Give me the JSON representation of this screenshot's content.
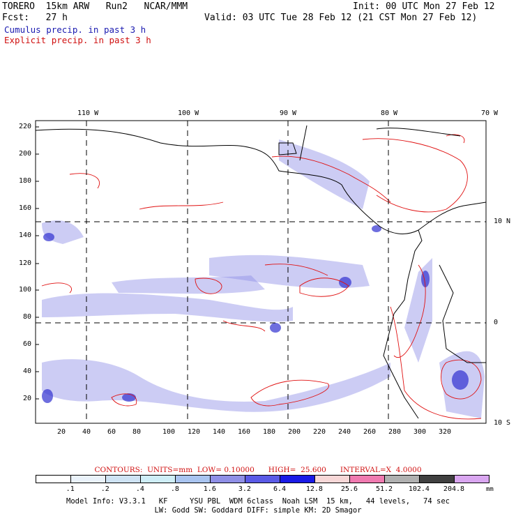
{
  "header": {
    "model": "TORERO  15km ARW   Run2   NCAR/MMM",
    "init": "Init: 00 UTC Mon 27 Feb 12",
    "fcst": "Fcst:   27 h",
    "valid": "Valid: 03 UTC Tue 28 Feb 12 (21 CST Mon 27 Feb 12)",
    "cumulus": "Cumulus precip. in past 3 h",
    "explicit": "Explicit precip. in past 3 h"
  },
  "map": {
    "top_ticks": [
      "110 W",
      "100 W",
      "90 W",
      "80 W",
      "70 W"
    ],
    "right_ticks": [
      "10 N",
      "0",
      "10 S"
    ],
    "left_ticks": [
      "220",
      "200",
      "180",
      "160",
      "140",
      "120",
      "100",
      "80",
      "60",
      "40",
      "20"
    ],
    "bottom_ticks": [
      "20",
      "40",
      "60",
      "80",
      "100",
      "120",
      "140",
      "160",
      "180",
      "200",
      "220",
      "240",
      "260",
      "280",
      "300",
      "320"
    ],
    "colors": {
      "cumulus": "#3a3ae0",
      "explicit": "#e01010",
      "coast": "#000000"
    }
  },
  "legend": {
    "contours": "CONTOURS:  UNITS=mm  LOW= 0.10000      HIGH=  25.600      INTERVAL=X  4.0000",
    "bins": [
      ".1",
      ".2",
      ".4",
      ".8",
      "1.6",
      "3.2",
      "6.4",
      "12.8",
      "25.6",
      "51.2",
      "102.4",
      "204.8"
    ],
    "units": "mm",
    "colors": [
      "#ffffff",
      "#eaf2fa",
      "#cfe3f4",
      "#cfeef7",
      "#a9c4f0",
      "#8f8fe6",
      "#5a5ae6",
      "#1a1ae6",
      "#f7d7d7",
      "#f07ab0",
      "#b0b0b0",
      "#404040",
      "#d9a6f0"
    ]
  },
  "footer": {
    "line1": "Model Info: V3.3.1   KF     YSU PBL  WDM 6class  Noah LSM  15 km,   44 levels,   74 sec",
    "line2": "LW: Godd SW: Goddard DIFF: simple KM: 2D Smagor"
  }
}
